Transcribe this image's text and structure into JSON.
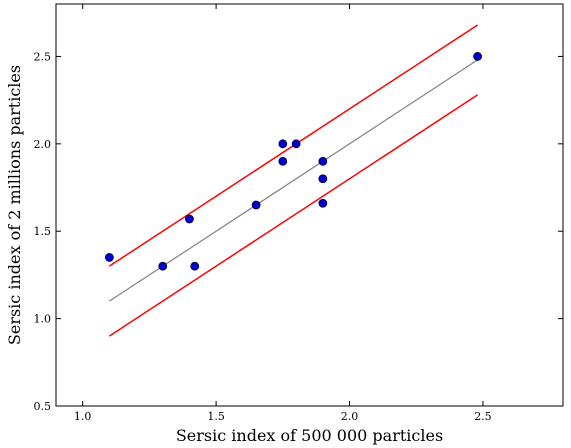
{
  "chart_data": {
    "type": "scatter",
    "title": "",
    "xlabel": "Sersic index of 500 000 particles",
    "ylabel": "Sersic index of 2 millions particles",
    "xlim": [
      0.9,
      2.8
    ],
    "ylim": [
      0.5,
      2.8
    ],
    "x_ticks": [
      1.0,
      1.5,
      2.0,
      2.5
    ],
    "x_tick_labels": [
      "1.0",
      "1.5",
      "2.0",
      "2.5"
    ],
    "y_ticks": [
      0.5,
      1.0,
      1.5,
      2.0,
      2.5
    ],
    "y_tick_labels": [
      "0.5",
      "1.0",
      "1.5",
      "2.0",
      "2.5"
    ],
    "grid": false,
    "points": {
      "color": "#0000cc",
      "x": [
        1.1,
        1.3,
        1.4,
        1.42,
        1.65,
        1.75,
        1.75,
        1.8,
        1.9,
        1.9,
        1.9,
        2.48
      ],
      "y": [
        1.35,
        1.3,
        1.57,
        1.3,
        1.65,
        2.0,
        1.9,
        2.0,
        1.9,
        1.8,
        1.66,
        2.5
      ]
    },
    "lines": [
      {
        "color": "#808080",
        "x": [
          1.1,
          2.48
        ],
        "y": [
          1.1,
          2.48
        ]
      },
      {
        "color": "#ff0000",
        "x": [
          1.1,
          2.48
        ],
        "y": [
          1.3,
          2.68
        ]
      },
      {
        "color": "#ff0000",
        "x": [
          1.1,
          2.48
        ],
        "y": [
          0.9,
          2.28
        ]
      }
    ]
  }
}
